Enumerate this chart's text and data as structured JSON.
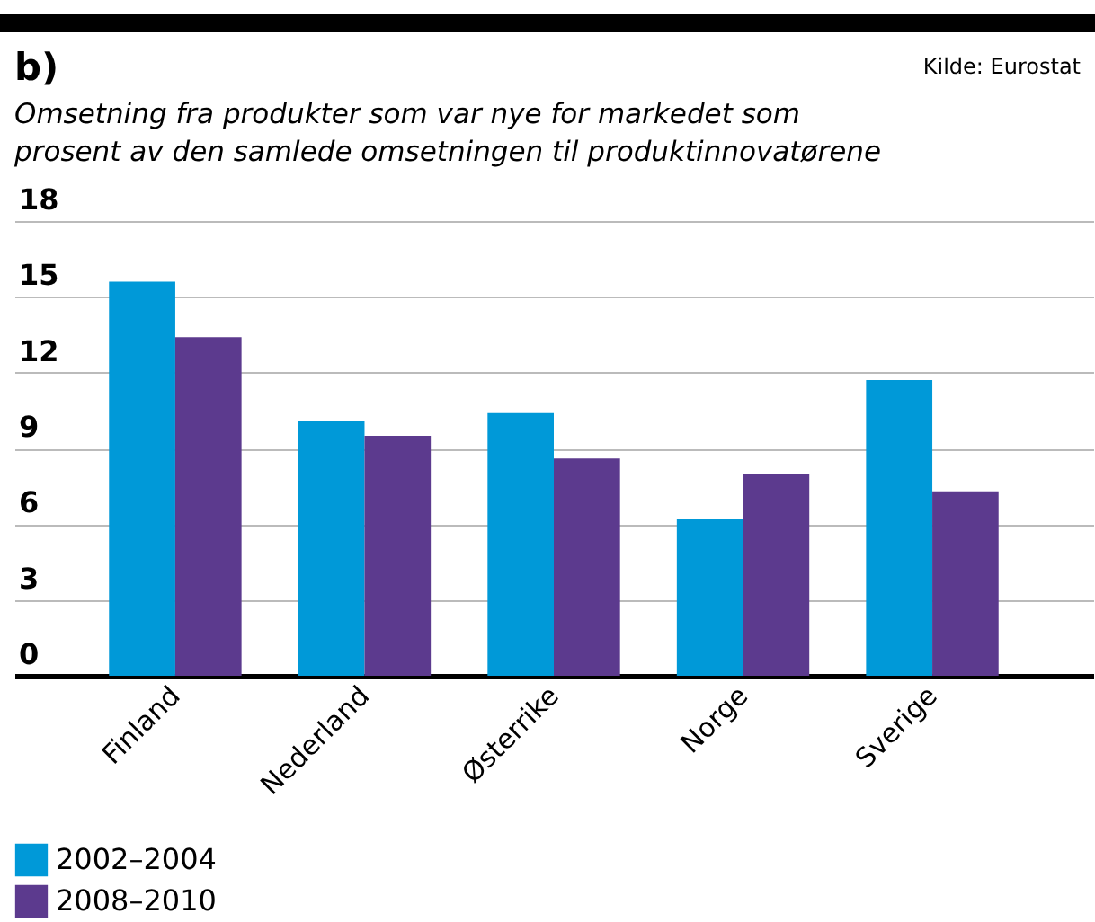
{
  "chart_data": {
    "type": "bar",
    "title": "b)",
    "subtitle": "Omsetning fra produkter som var nye for markedet som\nprosent av den samlede omsetningen til produktinnovatørene",
    "annotations": [
      "Kilde: Eurostat"
    ],
    "categories": [
      "Finland",
      "Nederland",
      "Østerrike",
      "Norge",
      "Sverige"
    ],
    "series": [
      {
        "name": "2002–2004",
        "color": "#0099d8",
        "values": [
          15.6,
          10.1,
          10.4,
          6.2,
          11.7
        ]
      },
      {
        "name": "2008–2010",
        "color": "#5c3a8e",
        "values": [
          13.4,
          9.5,
          8.6,
          8.0,
          7.3
        ]
      }
    ],
    "ylim": [
      0,
      18
    ],
    "yticks": [
      0,
      3,
      6,
      9,
      12,
      15,
      18
    ],
    "grid": "y",
    "legend": "bottom left"
  }
}
